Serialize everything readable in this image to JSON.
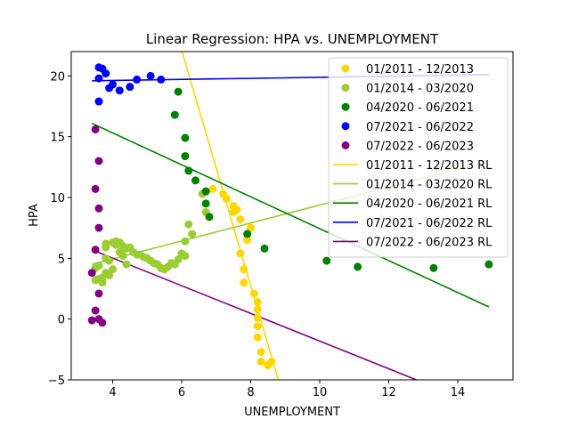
{
  "chart_data": {
    "type": "scatter",
    "title": "Linear Regression: HPA vs. UNEMPLOYMENT",
    "xlabel": "UNEMPLOYMENT",
    "ylabel": "HPA",
    "xlim": [
      2.8,
      15.6
    ],
    "ylim": [
      -5,
      22
    ],
    "xticks": [
      4,
      6,
      8,
      10,
      12,
      14
    ],
    "yticks": [
      -5,
      0,
      5,
      10,
      15,
      20
    ],
    "legend_position": "upper-right",
    "grid": false,
    "series": [
      {
        "name": "01/2011 - 12/2013",
        "kind": "scatter",
        "color": "#FFD700",
        "points": [
          [
            6.9,
            10.7
          ],
          [
            7.2,
            10.3
          ],
          [
            7.3,
            9.9
          ],
          [
            7.5,
            9.3
          ],
          [
            7.6,
            9.0
          ],
          [
            7.5,
            8.8
          ],
          [
            7.7,
            8.2
          ],
          [
            8.0,
            7.5
          ],
          [
            7.9,
            6.5
          ],
          [
            7.7,
            5.4
          ],
          [
            7.8,
            4.1
          ],
          [
            7.8,
            3.0
          ],
          [
            8.1,
            2.1
          ],
          [
            8.2,
            1.4
          ],
          [
            8.2,
            0.8
          ],
          [
            8.2,
            0.1
          ],
          [
            8.2,
            -0.6
          ],
          [
            8.2,
            -1.5
          ],
          [
            8.3,
            -2.7
          ],
          [
            8.3,
            -3.5
          ],
          [
            8.5,
            -3.8
          ],
          [
            8.6,
            -3.5
          ]
        ]
      },
      {
        "name": "01/2014 - 03/2020",
        "kind": "scatter",
        "color": "#9ACD32",
        "points": [
          [
            3.5,
            4.2
          ],
          [
            3.6,
            4.4
          ],
          [
            3.5,
            3.2
          ],
          [
            3.6,
            3.3
          ],
          [
            3.7,
            3.0
          ],
          [
            3.7,
            3.4
          ],
          [
            3.8,
            3.8
          ],
          [
            3.8,
            5.0
          ],
          [
            3.8,
            5.9
          ],
          [
            3.8,
            6.2
          ],
          [
            3.9,
            4.8
          ],
          [
            3.9,
            3.6
          ],
          [
            4.0,
            6.3
          ],
          [
            4.0,
            4.1
          ],
          [
            4.1,
            6.4
          ],
          [
            4.1,
            6.1
          ],
          [
            4.2,
            6.3
          ],
          [
            4.2,
            5.5
          ],
          [
            4.3,
            6.0
          ],
          [
            4.3,
            5.2
          ],
          [
            4.4,
            5.8
          ],
          [
            4.5,
            5.9
          ],
          [
            4.4,
            4.5
          ],
          [
            4.6,
            5.5
          ],
          [
            4.7,
            5.3
          ],
          [
            4.8,
            5.3
          ],
          [
            4.9,
            5.1
          ],
          [
            5.0,
            5.0
          ],
          [
            5.1,
            4.8
          ],
          [
            5.2,
            4.6
          ],
          [
            5.3,
            4.5
          ],
          [
            5.4,
            4.2
          ],
          [
            5.5,
            4.1
          ],
          [
            5.6,
            4.3
          ],
          [
            5.7,
            4.6
          ],
          [
            5.8,
            4.5
          ],
          [
            5.9,
            4.9
          ],
          [
            6.0,
            5.4
          ],
          [
            6.1,
            5.2
          ],
          [
            6.1,
            6.4
          ],
          [
            6.2,
            7.8
          ],
          [
            6.3,
            7.0
          ],
          [
            6.6,
            10.3
          ],
          [
            6.7,
            10.5
          ],
          [
            6.7,
            8.8
          ]
        ]
      },
      {
        "name": "04/2020 - 06/2021",
        "kind": "scatter",
        "color": "#008000",
        "points": [
          [
            14.9,
            4.5
          ],
          [
            13.3,
            4.2
          ],
          [
            11.1,
            4.3
          ],
          [
            10.2,
            4.8
          ],
          [
            8.4,
            5.8
          ],
          [
            7.9,
            7.0
          ],
          [
            6.8,
            8.4
          ],
          [
            6.7,
            9.5
          ],
          [
            6.7,
            10.5
          ],
          [
            6.4,
            11.4
          ],
          [
            6.2,
            12.2
          ],
          [
            6.1,
            13.4
          ],
          [
            6.1,
            14.9
          ],
          [
            5.8,
            16.8
          ],
          [
            5.9,
            18.7
          ]
        ]
      },
      {
        "name": "07/2021 - 06/2022",
        "kind": "scatter",
        "color": "#0000FF",
        "points": [
          [
            5.4,
            19.7
          ],
          [
            5.1,
            20.0
          ],
          [
            4.7,
            19.7
          ],
          [
            4.5,
            19.1
          ],
          [
            4.2,
            18.8
          ],
          [
            4.0,
            19.3
          ],
          [
            3.9,
            19.0
          ],
          [
            3.8,
            20.2
          ],
          [
            3.7,
            20.6
          ],
          [
            3.6,
            19.8
          ],
          [
            3.6,
            20.7
          ],
          [
            3.6,
            17.9
          ]
        ]
      },
      {
        "name": "07/2022 - 06/2023",
        "kind": "scatter",
        "color": "#800080",
        "points": [
          [
            3.5,
            15.6
          ],
          [
            3.6,
            13.0
          ],
          [
            3.5,
            10.7
          ],
          [
            3.6,
            9.1
          ],
          [
            3.6,
            7.5
          ],
          [
            3.5,
            5.7
          ],
          [
            3.4,
            3.8
          ],
          [
            3.6,
            2.1
          ],
          [
            3.5,
            0.7
          ],
          [
            3.4,
            -0.1
          ],
          [
            3.6,
            0.0
          ],
          [
            3.7,
            -0.3
          ]
        ]
      },
      {
        "name": "01/2011 - 12/2013 RL",
        "kind": "line",
        "color": "#FFD700",
        "points": [
          [
            5.7,
            25.0
          ],
          [
            8.8,
            -5.0
          ]
        ]
      },
      {
        "name": "01/2014 - 03/2020 RL",
        "kind": "line",
        "color": "#9ACD32",
        "points": [
          [
            3.4,
            4.5
          ],
          [
            14.9,
            13.0
          ]
        ]
      },
      {
        "name": "04/2020 - 06/2021 RL",
        "kind": "line",
        "color": "#008000",
        "points": [
          [
            3.4,
            16.1
          ],
          [
            14.9,
            1.0
          ]
        ]
      },
      {
        "name": "07/2021 - 06/2022 RL",
        "kind": "line",
        "color": "#0000FF",
        "points": [
          [
            3.4,
            19.6
          ],
          [
            14.9,
            20.1
          ]
        ]
      },
      {
        "name": "07/2022 - 06/2023 RL",
        "kind": "line",
        "color": "#800080",
        "points": [
          [
            3.4,
            5.7
          ],
          [
            12.8,
            -5.0
          ]
        ]
      }
    ]
  }
}
